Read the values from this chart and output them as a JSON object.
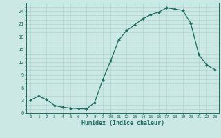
{
  "x": [
    0,
    1,
    2,
    3,
    4,
    5,
    6,
    7,
    8,
    9,
    10,
    11,
    12,
    13,
    14,
    15,
    16,
    17,
    18,
    19,
    20,
    21,
    22,
    23
  ],
  "y": [
    3.1,
    4.0,
    3.2,
    1.8,
    1.4,
    1.2,
    1.1,
    1.0,
    2.5,
    7.8,
    12.3,
    17.2,
    19.5,
    20.8,
    22.2,
    23.2,
    23.8,
    24.8,
    24.5,
    24.2,
    21.2,
    13.8,
    11.3,
    10.3
  ],
  "line_color": "#1a6b5e",
  "marker": "D",
  "marker_size": 2.0,
  "bg_color": "#cce8e4",
  "grid_color": "#b0d4cf",
  "tick_color": "#1a6b5e",
  "ylabel_ticks": [
    0,
    3,
    6,
    9,
    12,
    15,
    18,
    21,
    24
  ],
  "xlabel": "Humidex (Indice chaleur)",
  "xlim": [
    -0.5,
    23.5
  ],
  "ylim": [
    0,
    26
  ],
  "figsize": [
    3.2,
    2.0
  ],
  "dpi": 100
}
